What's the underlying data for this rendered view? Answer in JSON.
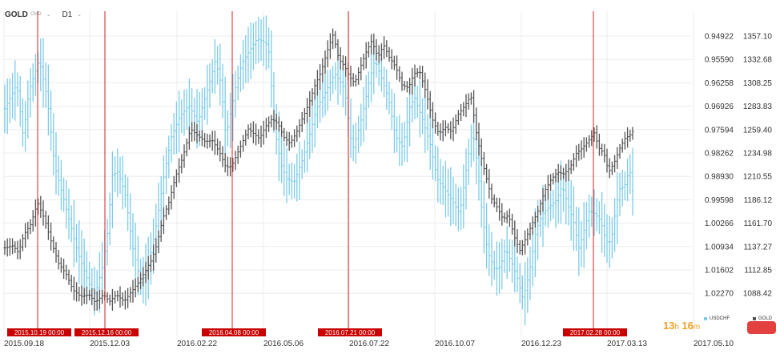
{
  "header": {
    "symbol": "GOLD",
    "symbol_sub": "CMD",
    "timeframe": "D1"
  },
  "timer": {
    "hours": "13",
    "h_label": "h",
    "minutes": "16",
    "m_label": "m"
  },
  "colors": {
    "usdchf": "#7ecbe8",
    "gold": "#555555",
    "marker": "#d42020",
    "marker_label_bg": "#c80000",
    "grid": "#ececec",
    "axis_text": "#333333",
    "timer": "#f0a020",
    "button": "#e34040"
  },
  "chart_data": {
    "type": "ohlc",
    "axis_left_labels": [
      "0.94922",
      "0.95590",
      "0.96258",
      "0.96926",
      "0.97594",
      "0.98262",
      "0.98930",
      "0.99598",
      "1.00266",
      "1.00934",
      "1.01602",
      "1.02270"
    ],
    "axis_right_labels": [
      "1357.10",
      "1332.68",
      "1308.25",
      "1283.83",
      "1259.40",
      "1234.98",
      "1210.55",
      "1186.12",
      "1161.70",
      "1137.27",
      "1112.85",
      "1088.42"
    ],
    "x_labels": [
      "2015.09.18",
      "2015.12.03",
      "2016.02.22",
      "2016.05.06",
      "2016.07.22",
      "2016.10.07",
      "2016.12.23",
      "2017.03.13",
      "2017.05.10"
    ],
    "markers": [
      "2015.10.19 00:00",
      "2015.12.16 00:00",
      "2016.04.08 00:00",
      "2016.07.21 00:00",
      "2017.02.28 00:00"
    ],
    "series": [
      {
        "name": "USDCHF",
        "axis": "left",
        "anchors": [
          [
            0,
            0.97
          ],
          [
            15,
            0.963
          ],
          [
            23,
            0.978
          ],
          [
            30,
            0.965
          ],
          [
            43,
            0.956
          ],
          [
            53,
            0.967
          ],
          [
            62,
            0.986
          ],
          [
            76,
            0.998
          ],
          [
            91,
            1.011
          ],
          [
            105,
            1.02
          ],
          [
            113,
            1.023
          ],
          [
            122,
            1.015
          ],
          [
            129,
            1.004
          ],
          [
            134,
            0.989
          ],
          [
            141,
            0.988
          ],
          [
            150,
            0.994
          ],
          [
            160,
            1.01
          ],
          [
            170,
            1.02
          ],
          [
            180,
            1.014
          ],
          [
            190,
            1.002
          ],
          [
            198,
            0.99
          ],
          [
            208,
            0.978
          ],
          [
            219,
            0.972
          ],
          [
            230,
            0.969
          ],
          [
            241,
            0.974
          ],
          [
            255,
            0.963
          ],
          [
            263,
            0.956
          ],
          [
            270,
            0.963
          ],
          [
            276,
            0.978
          ],
          [
            282,
            0.971
          ],
          [
            288,
            0.964
          ],
          [
            296,
            0.957
          ],
          [
            304,
            0.954
          ],
          [
            315,
            0.95
          ],
          [
            324,
            0.951
          ],
          [
            329,
            0.952
          ],
          [
            337,
            0.976
          ],
          [
            345,
            0.986
          ],
          [
            352,
            0.99
          ],
          [
            361,
            0.991
          ],
          [
            371,
            0.985
          ],
          [
            380,
            0.978
          ],
          [
            389,
            0.97
          ],
          [
            401,
            0.965
          ],
          [
            412,
            0.96
          ],
          [
            424,
            0.964
          ],
          [
            434,
            0.982
          ],
          [
            443,
            0.975
          ],
          [
            449,
            0.969
          ],
          [
            455,
            0.962
          ],
          [
            462,
            0.956
          ],
          [
            470,
            0.961
          ],
          [
            479,
            0.967
          ],
          [
            488,
            0.978
          ],
          [
            497,
            0.981
          ],
          [
            506,
            0.969
          ],
          [
            512,
            0.967
          ],
          [
            520,
            0.972
          ],
          [
            531,
            0.98
          ],
          [
            540,
            0.99
          ],
          [
            549,
            0.993
          ],
          [
            558,
            0.996
          ],
          [
            568,
            1.0
          ],
          [
            577,
            0.986
          ],
          [
            584,
            0.976
          ],
          [
            590,
            0.986
          ],
          [
            596,
            1.0
          ],
          [
            603,
            1.011
          ],
          [
            612,
            1.016
          ],
          [
            619,
            1.015
          ],
          [
            625,
            1.01
          ],
          [
            633,
            1.014
          ],
          [
            641,
            1.019
          ],
          [
            646,
            1.024
          ],
          [
            651,
            1.021
          ],
          [
            657,
            1.014
          ],
          [
            663,
            1.005
          ],
          [
            671,
            1.0
          ],
          [
            680,
            0.998
          ],
          [
            689,
            0.996
          ],
          [
            696,
            0.992
          ],
          [
            704,
            0.998
          ],
          [
            710,
            1.002
          ],
          [
            717,
            1.01
          ],
          [
            724,
            1.004
          ],
          [
            730,
            0.999
          ],
          [
            737,
            1.0
          ],
          [
            744,
            1.002
          ],
          [
            751,
            1.008
          ],
          [
            757,
            1.008
          ],
          [
            762,
            1.0
          ],
          [
            767,
            0.993
          ],
          [
            774,
            0.992
          ],
          [
            780,
            0.987
          ],
          [
            785,
            0.995
          ]
        ]
      },
      {
        "name": "GOLD",
        "axis": "right",
        "anchors": [
          [
            0,
            1136
          ],
          [
            10,
            1138
          ],
          [
            17,
            1131
          ],
          [
            24,
            1150
          ],
          [
            32,
            1160
          ],
          [
            41,
            1183
          ],
          [
            50,
            1165
          ],
          [
            58,
            1142
          ],
          [
            67,
            1120
          ],
          [
            77,
            1108
          ],
          [
            85,
            1092
          ],
          [
            95,
            1085
          ],
          [
            105,
            1087
          ],
          [
            113,
            1079
          ],
          [
            123,
            1087
          ],
          [
            131,
            1080
          ],
          [
            139,
            1087
          ],
          [
            149,
            1080
          ],
          [
            157,
            1089
          ],
          [
            167,
            1100
          ],
          [
            175,
            1111
          ],
          [
            183,
            1123
          ],
          [
            190,
            1140
          ],
          [
            197,
            1166
          ],
          [
            205,
            1184
          ],
          [
            213,
            1210
          ],
          [
            222,
            1230
          ],
          [
            232,
            1260
          ],
          [
            241,
            1253
          ],
          [
            250,
            1247
          ],
          [
            259,
            1248
          ],
          [
            268,
            1236
          ],
          [
            276,
            1220
          ],
          [
            283,
            1221
          ],
          [
            289,
            1232
          ],
          [
            296,
            1245
          ],
          [
            304,
            1260
          ],
          [
            311,
            1255
          ],
          [
            318,
            1250
          ],
          [
            325,
            1262
          ],
          [
            333,
            1270
          ],
          [
            341,
            1266
          ],
          [
            348,
            1252
          ],
          [
            356,
            1245
          ],
          [
            364,
            1256
          ],
          [
            371,
            1270
          ],
          [
            379,
            1285
          ],
          [
            387,
            1305
          ],
          [
            395,
            1320
          ],
          [
            402,
            1340
          ],
          [
            410,
            1359
          ],
          [
            417,
            1333
          ],
          [
            424,
            1326
          ],
          [
            430,
            1315
          ],
          [
            437,
            1308
          ],
          [
            444,
            1325
          ],
          [
            451,
            1340
          ],
          [
            458,
            1352
          ],
          [
            466,
            1335
          ],
          [
            473,
            1348
          ],
          [
            480,
            1335
          ],
          [
            488,
            1325
          ],
          [
            496,
            1306
          ],
          [
            504,
            1303
          ],
          [
            511,
            1318
          ],
          [
            518,
            1320
          ],
          [
            526,
            1298
          ],
          [
            534,
            1270
          ],
          [
            542,
            1255
          ],
          [
            550,
            1262
          ],
          [
            558,
            1257
          ],
          [
            566,
            1275
          ],
          [
            575,
            1285
          ],
          [
            582,
            1295
          ],
          [
            589,
            1255
          ],
          [
            595,
            1230
          ],
          [
            601,
            1210
          ],
          [
            608,
            1187
          ],
          [
            615,
            1178
          ],
          [
            622,
            1166
          ],
          [
            629,
            1170
          ],
          [
            636,
            1148
          ],
          [
            643,
            1133
          ],
          [
            650,
            1145
          ],
          [
            658,
            1160
          ],
          [
            666,
            1175
          ],
          [
            674,
            1195
          ],
          [
            682,
            1207
          ],
          [
            690,
            1215
          ],
          [
            698,
            1213
          ],
          [
            706,
            1220
          ],
          [
            713,
            1234
          ],
          [
            721,
            1240
          ],
          [
            729,
            1248
          ],
          [
            736,
            1256
          ],
          [
            742,
            1240
          ],
          [
            748,
            1235
          ],
          [
            754,
            1215
          ],
          [
            761,
            1225
          ],
          [
            768,
            1240
          ],
          [
            774,
            1250
          ],
          [
            781,
            1254
          ],
          [
            785,
            1258
          ]
        ]
      }
    ]
  }
}
